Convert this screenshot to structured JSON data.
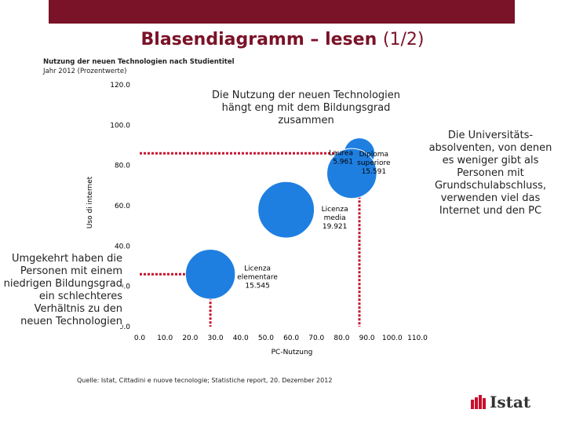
{
  "header": {
    "title_main": "Blasendiagramm – lesen",
    "title_part": "(1/2)",
    "band_color": "#7a1228",
    "title_color": "#7a1228"
  },
  "subtitle": {
    "line1": "Nutzung der neuen Technologien nach Studientitel",
    "line2": "Jahr 2012 (Prozentwerte)"
  },
  "annotations": {
    "top": "Die Nutzung der neuen Technologien hängt eng mit dem Bildungsgrad zusammen",
    "right": "Die Universitäts-absolventen, von denen es weniger gibt als Personen mit Grundschulabschluss, verwenden viel das Internet und den PC",
    "left": "Umgekehrt haben die Personen mit einem niedrigen Bildungsgrad ein schlechteres Verhältnis zu den neuen Technologien"
  },
  "source": "Quelle: Istat, Cittadini e nuove tecnologie; Statistiche report, 20. Dezember 2012",
  "logo": {
    "text": "Istat",
    "icon": "istat-logo-icon",
    "color": "#c8102e"
  },
  "chart_data": {
    "type": "scatter",
    "title": "",
    "xlabel": "PC-Nutzung",
    "ylabel": "Uso di internet",
    "xlim": [
      0,
      110
    ],
    "ylim": [
      0,
      120
    ],
    "xticks": [
      "0.0",
      "10.0",
      "20.0",
      "30.0",
      "40.0",
      "50.0",
      "60.0",
      "70.0",
      "80.0",
      "90.0",
      "100.0",
      "110.0"
    ],
    "yticks": [
      "0.0",
      "20.0",
      "40.0",
      "60.0",
      "80.0",
      "100.0",
      "120.0"
    ],
    "bubble_color": "#1f7fe0",
    "guide_color": "#c8102e",
    "points": [
      {
        "name": "Laurea",
        "x": 87,
        "y": 86,
        "size": 5.961,
        "size_label": "5.961"
      },
      {
        "name": "Diploma superiore",
        "x": 84,
        "y": 76,
        "size": 15.591,
        "size_label": "15.591"
      },
      {
        "name": "Licenza media",
        "x": 58,
        "y": 58,
        "size": 19.921,
        "size_label": "19.921"
      },
      {
        "name": "Licenza elementare",
        "x": 28,
        "y": 26,
        "size": 15.545,
        "size_label": "15.545"
      }
    ],
    "guides": [
      {
        "x": 87,
        "y": 86
      },
      {
        "x": 28,
        "y": 26
      }
    ]
  }
}
